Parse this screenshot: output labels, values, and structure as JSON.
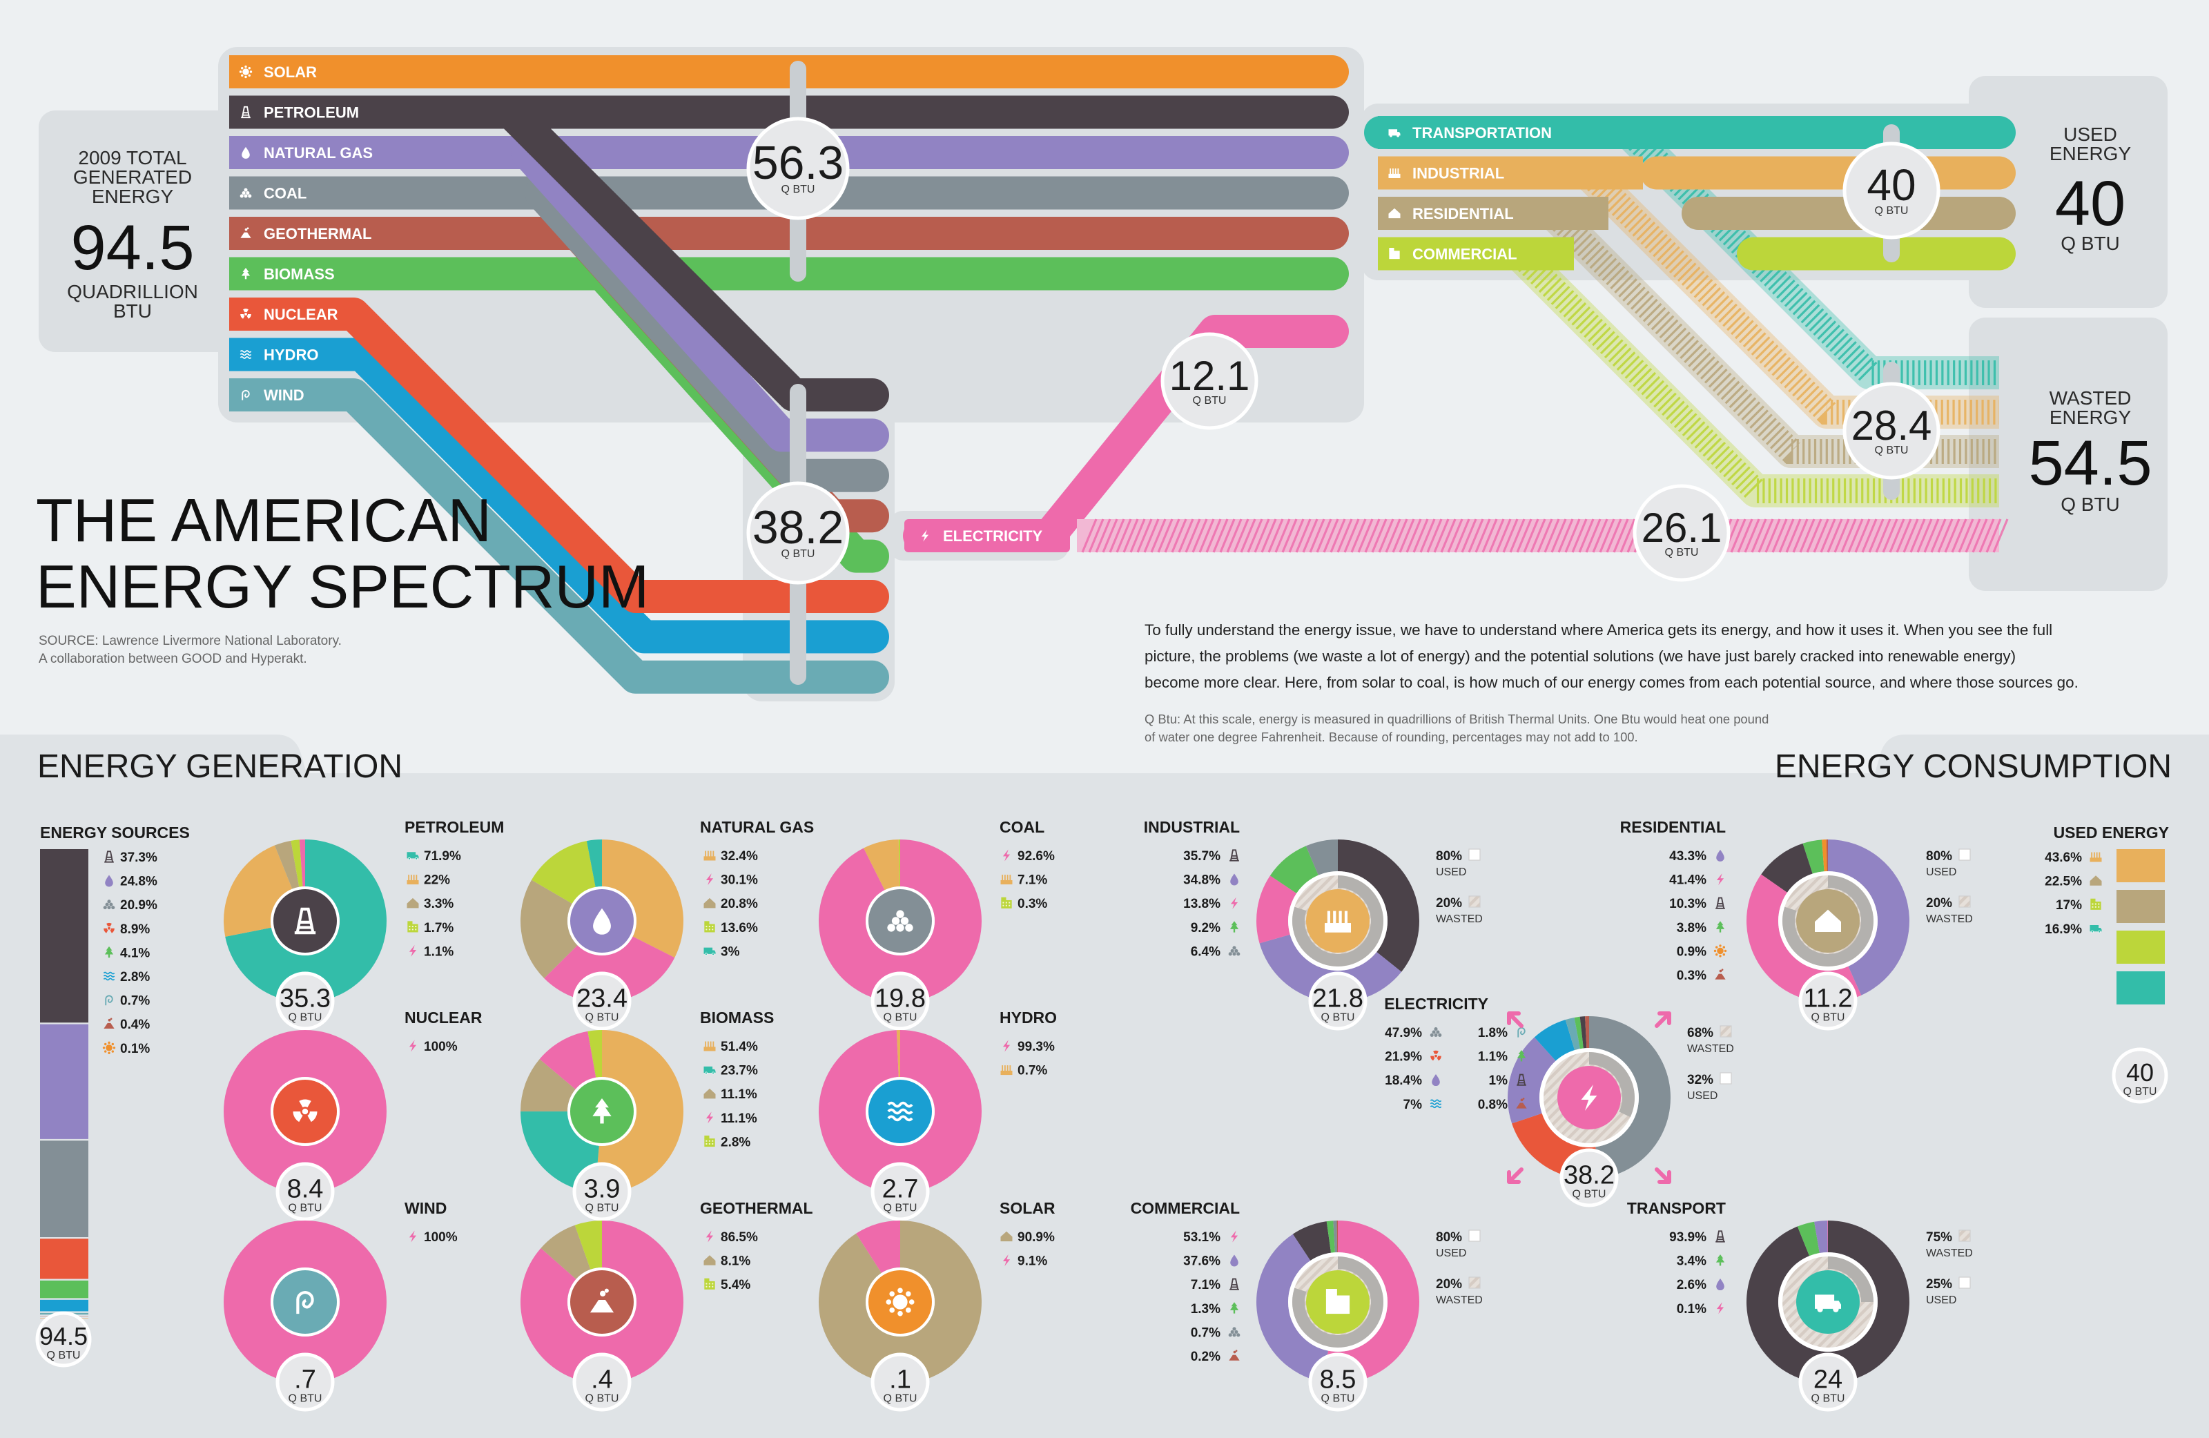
{
  "header": {
    "title_line1": "THE AMERICAN",
    "title_line2": "ENERGY SPECTRUM",
    "source_line1": "SOURCE: Lawrence Livermore National Laboratory.",
    "source_line2": "A collaboration between GOOD and Hyperakt."
  },
  "total": {
    "line1": "2009 TOTAL",
    "line2": "GENERATED",
    "line3": "ENERGY",
    "value": "94.5",
    "unit1": "QUADRILLION",
    "unit2": "BTU"
  },
  "used_box": {
    "line1": "USED",
    "line2": "ENERGY",
    "value": "40",
    "unit": "Q BTU"
  },
  "wasted_box": {
    "line1": "WASTED",
    "line2": "ENERGY",
    "value": "54.5",
    "unit": "Q BTU"
  },
  "flow_badges": [
    {
      "value": "56.3",
      "unit": "Q BTU"
    },
    {
      "value": "38.2",
      "unit": "Q BTU"
    },
    {
      "value": "12.1",
      "unit": "Q BTU"
    },
    {
      "value": "26.1",
      "unit": "Q BTU"
    },
    {
      "value": "40",
      "unit": "Q BTU"
    },
    {
      "value": "28.4",
      "unit": "Q BTU"
    }
  ],
  "sources": [
    {
      "label": "SOLAR",
      "color": "#f0902c",
      "icon": "sun-icon"
    },
    {
      "label": "PETROLEUM",
      "color": "#4b4249",
      "icon": "oil-rig-icon"
    },
    {
      "label": "NATURAL GAS",
      "color": "#9183c3",
      "icon": "flame-drop-icon"
    },
    {
      "label": "COAL",
      "color": "#838f96",
      "icon": "coal-pile-icon"
    },
    {
      "label": "GEOTHERMAL",
      "color": "#b85d4e",
      "icon": "volcano-icon"
    },
    {
      "label": "BIOMASS",
      "color": "#5cbf5a",
      "icon": "tree-icon"
    },
    {
      "label": "NUCLEAR",
      "color": "#e9573a",
      "icon": "radiation-icon"
    },
    {
      "label": "HYDRO",
      "color": "#1a9fd2",
      "icon": "waves-icon"
    },
    {
      "label": "WIND",
      "color": "#6aabb4",
      "icon": "wind-icon"
    }
  ],
  "sectors": [
    {
      "label": "TRANSPORTATION",
      "color": "#33bda9",
      "icon": "truck-icon"
    },
    {
      "label": "INDUSTRIAL",
      "color": "#e8b05c",
      "icon": "factory-icon"
    },
    {
      "label": "RESIDENTIAL",
      "color": "#b8a67c",
      "icon": "house-icon"
    },
    {
      "label": "COMMERCIAL",
      "color": "#bcd63a",
      "icon": "building-icon"
    }
  ],
  "electricity": {
    "label": "ELECTRICITY",
    "color": "#ee6aab",
    "icon": "bolt-icon"
  },
  "description": {
    "p1_line1": "To fully understand the energy issue, we have to understand where America gets its energy, and how it uses it. When you see the full",
    "p1_line2": "picture, the problems (we waste a lot of energy) and the potential solutions (we have just barely cracked into renewable energy)",
    "p1_line3": "become more clear. Here, from solar to coal, is how much of our energy comes from each potential source, and where those sources go.",
    "note_line1": "Q Btu: At this scale, energy is measured in quadrillions of British Thermal Units. One Btu would heat one pound",
    "note_line2": "of water one degree Fahrenheit. Because of rounding, percentages may not add to 100."
  },
  "section_titles": {
    "generation": "ENERGY GENERATION",
    "consumption": "ENERGY CONSUMPTION"
  },
  "unit_label": "Q BTU",
  "energy_sources_bar": {
    "title": "ENERGY SOURCES",
    "total": "94.5",
    "items": [
      {
        "pct": "37.3%",
        "value": 37.3,
        "color": "#4b4249",
        "icon": "oil-rig-icon"
      },
      {
        "pct": "24.8%",
        "value": 24.8,
        "color": "#9183c3",
        "icon": "flame-drop-icon"
      },
      {
        "pct": "20.9%",
        "value": 20.9,
        "color": "#838f96",
        "icon": "coal-pile-icon"
      },
      {
        "pct": "8.9%",
        "value": 8.9,
        "color": "#e9573a",
        "icon": "radiation-icon"
      },
      {
        "pct": "4.1%",
        "value": 4.1,
        "color": "#5cbf5a",
        "icon": "tree-icon"
      },
      {
        "pct": "2.8%",
        "value": 2.8,
        "color": "#1a9fd2",
        "icon": "waves-icon"
      },
      {
        "pct": "0.7%",
        "value": 0.7,
        "color": "#6aabb4",
        "icon": "wind-icon"
      },
      {
        "pct": "0.4%",
        "value": 0.4,
        "color": "#b85d4e",
        "icon": "volcano-icon"
      },
      {
        "pct": "0.1%",
        "value": 0.1,
        "color": "#f0902c",
        "icon": "sun-icon"
      }
    ]
  },
  "used_energy_bar": {
    "title": "USED ENERGY",
    "total": "40",
    "items": [
      {
        "pct": "43.6%",
        "value": 43.6,
        "color": "#e8b05c",
        "icon": "factory-icon"
      },
      {
        "pct": "22.5%",
        "value": 22.5,
        "color": "#b8a67c",
        "icon": "house-icon"
      },
      {
        "pct": "17%",
        "value": 17,
        "color": "#bcd63a",
        "icon": "building-icon"
      },
      {
        "pct": "16.9%",
        "value": 16.9,
        "color": "#33bda9",
        "icon": "truck-icon"
      }
    ]
  },
  "chart_data": [
    {
      "type": "pie",
      "title": "PETROLEUM",
      "total": "35.3",
      "icon_color": "#4b4249",
      "center_icon": "oil-rig-icon",
      "legend": [
        {
          "pct": "71.9%",
          "value": 71.9,
          "color": "#33bda9",
          "icon": "truck-icon"
        },
        {
          "pct": "22%",
          "value": 22,
          "color": "#e8b05c",
          "icon": "factory-icon"
        },
        {
          "pct": "3.3%",
          "value": 3.3,
          "color": "#b8a67c",
          "icon": "house-icon"
        },
        {
          "pct": "1.7%",
          "value": 1.7,
          "color": "#bcd63a",
          "icon": "building-icon"
        },
        {
          "pct": "1.1%",
          "value": 1.1,
          "color": "#ee6aab",
          "icon": "bolt-icon"
        }
      ]
    },
    {
      "type": "pie",
      "title": "NATURAL GAS",
      "total": "23.4",
      "icon_color": "#9183c3",
      "center_icon": "flame-drop-icon",
      "legend": [
        {
          "pct": "32.4%",
          "value": 32.4,
          "color": "#e8b05c",
          "icon": "factory-icon"
        },
        {
          "pct": "30.1%",
          "value": 30.1,
          "color": "#ee6aab",
          "icon": "bolt-icon"
        },
        {
          "pct": "20.8%",
          "value": 20.8,
          "color": "#b8a67c",
          "icon": "house-icon"
        },
        {
          "pct": "13.6%",
          "value": 13.6,
          "color": "#bcd63a",
          "icon": "building-icon"
        },
        {
          "pct": "3%",
          "value": 3,
          "color": "#33bda9",
          "icon": "truck-icon"
        }
      ]
    },
    {
      "type": "pie",
      "title": "COAL",
      "total": "19.8",
      "icon_color": "#838f96",
      "center_icon": "coal-pile-icon",
      "legend": [
        {
          "pct": "92.6%",
          "value": 92.6,
          "color": "#ee6aab",
          "icon": "bolt-icon"
        },
        {
          "pct": "7.1%",
          "value": 7.1,
          "color": "#e8b05c",
          "icon": "factory-icon"
        },
        {
          "pct": "0.3%",
          "value": 0.3,
          "color": "#bcd63a",
          "icon": "building-icon"
        }
      ]
    },
    {
      "type": "pie",
      "title": "NUCLEAR",
      "total": "8.4",
      "icon_color": "#e9573a",
      "center_icon": "radiation-icon",
      "legend": [
        {
          "pct": "100%",
          "value": 100,
          "color": "#ee6aab",
          "icon": "bolt-icon"
        }
      ]
    },
    {
      "type": "pie",
      "title": "BIOMASS",
      "total": "3.9",
      "icon_color": "#5cbf5a",
      "center_icon": "tree-icon",
      "legend": [
        {
          "pct": "51.4%",
          "value": 51.4,
          "color": "#e8b05c",
          "icon": "factory-icon"
        },
        {
          "pct": "23.7%",
          "value": 23.7,
          "color": "#33bda9",
          "icon": "truck-icon"
        },
        {
          "pct": "11.1%",
          "value": 11.1,
          "color": "#b8a67c",
          "icon": "house-icon"
        },
        {
          "pct": "11.1%",
          "value": 11.1,
          "color": "#ee6aab",
          "icon": "bolt-icon"
        },
        {
          "pct": "2.8%",
          "value": 2.8,
          "color": "#bcd63a",
          "icon": "building-icon"
        }
      ]
    },
    {
      "type": "pie",
      "title": "HYDRO",
      "total": "2.7",
      "icon_color": "#1a9fd2",
      "center_icon": "waves-icon",
      "legend": [
        {
          "pct": "99.3%",
          "value": 99.3,
          "color": "#ee6aab",
          "icon": "bolt-icon"
        },
        {
          "pct": "0.7%",
          "value": 0.7,
          "color": "#e8b05c",
          "icon": "factory-icon"
        }
      ]
    },
    {
      "type": "pie",
      "title": "WIND",
      "total": ".7",
      "icon_color": "#6aabb4",
      "center_icon": "wind-icon",
      "legend": [
        {
          "pct": "100%",
          "value": 100,
          "color": "#ee6aab",
          "icon": "bolt-icon"
        }
      ]
    },
    {
      "type": "pie",
      "title": "GEOTHERMAL",
      "total": ".4",
      "icon_color": "#b85d4e",
      "center_icon": "volcano-icon",
      "legend": [
        {
          "pct": "86.5%",
          "value": 86.5,
          "color": "#ee6aab",
          "icon": "bolt-icon"
        },
        {
          "pct": "8.1%",
          "value": 8.1,
          "color": "#b8a67c",
          "icon": "house-icon"
        },
        {
          "pct": "5.4%",
          "value": 5.4,
          "color": "#bcd63a",
          "icon": "building-icon"
        }
      ]
    },
    {
      "type": "pie",
      "title": "SOLAR",
      "total": ".1",
      "icon_color": "#f0902c",
      "center_icon": "sun-icon",
      "legend": [
        {
          "pct": "90.9%",
          "value": 90.9,
          "color": "#b8a67c",
          "icon": "house-icon"
        },
        {
          "pct": "9.1%",
          "value": 9.1,
          "color": "#ee6aab",
          "icon": "bolt-icon"
        }
      ]
    },
    {
      "type": "pie",
      "title": "INDUSTRIAL",
      "total": "21.8",
      "icon_color": "#e8b05c",
      "center_icon": "factory-icon",
      "legend": [
        {
          "pct": "35.7%",
          "value": 35.7,
          "color": "#4b4249",
          "icon": "oil-rig-icon"
        },
        {
          "pct": "34.8%",
          "value": 34.8,
          "color": "#9183c3",
          "icon": "flame-drop-icon"
        },
        {
          "pct": "13.8%",
          "value": 13.8,
          "color": "#ee6aab",
          "icon": "bolt-icon"
        },
        {
          "pct": "9.2%",
          "value": 9.2,
          "color": "#5cbf5a",
          "icon": "tree-icon"
        },
        {
          "pct": "6.4%",
          "value": 6.4,
          "color": "#838f96",
          "icon": "coal-pile-icon"
        }
      ],
      "efficiency": [
        {
          "pct": "80%",
          "label": "USED"
        },
        {
          "pct": "20%",
          "label": "WASTED"
        }
      ],
      "used_ratio": 0.8
    },
    {
      "type": "pie",
      "title": "RESIDENTIAL",
      "total": "11.2",
      "icon_color": "#b8a67c",
      "center_icon": "house-icon",
      "legend": [
        {
          "pct": "43.3%",
          "value": 43.3,
          "color": "#9183c3",
          "icon": "flame-drop-icon"
        },
        {
          "pct": "41.4%",
          "value": 41.4,
          "color": "#ee6aab",
          "icon": "bolt-icon"
        },
        {
          "pct": "10.3%",
          "value": 10.3,
          "color": "#4b4249",
          "icon": "oil-rig-icon"
        },
        {
          "pct": "3.8%",
          "value": 3.8,
          "color": "#5cbf5a",
          "icon": "tree-icon"
        },
        {
          "pct": "0.9%",
          "value": 0.9,
          "color": "#f0902c",
          "icon": "sun-icon"
        },
        {
          "pct": "0.3%",
          "value": 0.3,
          "color": "#b85d4e",
          "icon": "volcano-icon"
        }
      ],
      "efficiency": [
        {
          "pct": "80%",
          "label": "USED"
        },
        {
          "pct": "20%",
          "label": "WASTED"
        }
      ],
      "used_ratio": 0.8
    },
    {
      "type": "pie",
      "title": "ELECTRICITY",
      "total": "38.2",
      "icon_color": "#ee6aab",
      "center_icon": "bolt-icon",
      "legend": [
        {
          "pct": "47.9%",
          "value": 47.9,
          "color": "#838f96",
          "icon": "coal-pile-icon"
        },
        {
          "pct": "21.9%",
          "value": 21.9,
          "color": "#e9573a",
          "icon": "radiation-icon"
        },
        {
          "pct": "18.4%",
          "value": 18.4,
          "color": "#9183c3",
          "icon": "flame-drop-icon"
        },
        {
          "pct": "7%",
          "value": 7,
          "color": "#1a9fd2",
          "icon": "waves-icon"
        },
        {
          "pct": "1.8%",
          "value": 1.8,
          "color": "#6aabb4",
          "icon": "wind-icon"
        },
        {
          "pct": "1.1%",
          "value": 1.1,
          "color": "#5cbf5a",
          "icon": "tree-icon"
        },
        {
          "pct": "1%",
          "value": 1,
          "color": "#4b4249",
          "icon": "oil-rig-icon"
        },
        {
          "pct": "0.8%",
          "value": 0.8,
          "color": "#b85d4e",
          "icon": "volcano-icon"
        }
      ],
      "efficiency": [
        {
          "pct": "68%",
          "label": "WASTED"
        },
        {
          "pct": "32%",
          "label": "USED"
        }
      ],
      "used_ratio": 0.32
    },
    {
      "type": "pie",
      "title": "COMMERCIAL",
      "total": "8.5",
      "icon_color": "#bcd63a",
      "center_icon": "building-icon",
      "legend": [
        {
          "pct": "53.1%",
          "value": 53.1,
          "color": "#ee6aab",
          "icon": "bolt-icon"
        },
        {
          "pct": "37.6%",
          "value": 37.6,
          "color": "#9183c3",
          "icon": "flame-drop-icon"
        },
        {
          "pct": "7.1%",
          "value": 7.1,
          "color": "#4b4249",
          "icon": "oil-rig-icon"
        },
        {
          "pct": "1.3%",
          "value": 1.3,
          "color": "#5cbf5a",
          "icon": "tree-icon"
        },
        {
          "pct": "0.7%",
          "value": 0.7,
          "color": "#838f96",
          "icon": "coal-pile-icon"
        },
        {
          "pct": "0.2%",
          "value": 0.2,
          "color": "#b85d4e",
          "icon": "volcano-icon"
        }
      ],
      "efficiency": [
        {
          "pct": "80%",
          "label": "USED"
        },
        {
          "pct": "20%",
          "label": "WASTED"
        }
      ],
      "used_ratio": 0.8
    },
    {
      "type": "pie",
      "title": "TRANSPORT",
      "total": "24",
      "icon_color": "#33bda9",
      "center_icon": "truck-icon",
      "legend": [
        {
          "pct": "93.9%",
          "value": 93.9,
          "color": "#4b4249",
          "icon": "oil-rig-icon"
        },
        {
          "pct": "3.4%",
          "value": 3.4,
          "color": "#5cbf5a",
          "icon": "tree-icon"
        },
        {
          "pct": "2.6%",
          "value": 2.6,
          "color": "#9183c3",
          "icon": "flame-drop-icon"
        },
        {
          "pct": "0.1%",
          "value": 0.1,
          "color": "#ee6aab",
          "icon": "bolt-icon"
        }
      ],
      "efficiency": [
        {
          "pct": "75%",
          "label": "WASTED"
        },
        {
          "pct": "25%",
          "label": "USED"
        }
      ],
      "used_ratio": 0.25
    }
  ]
}
